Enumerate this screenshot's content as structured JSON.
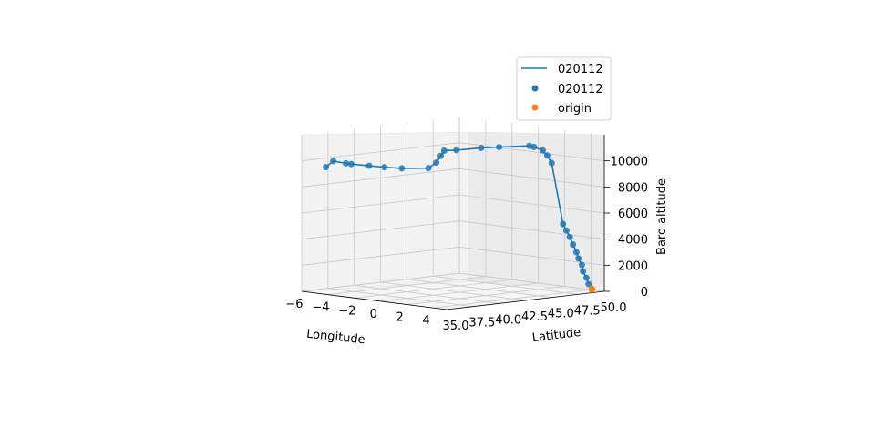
{
  "chart_data": {
    "type": "scatter",
    "projection": "3d",
    "axes": {
      "x": {
        "label": "Longitude",
        "ticks": [
          "−6",
          "−4",
          "−2",
          "0",
          "2",
          "4"
        ],
        "range": [
          -6,
          5
        ]
      },
      "y": {
        "label": "Latitude",
        "ticks": [
          "35.0",
          "37.5",
          "40.0",
          "42.5",
          "45.0",
          "47.5",
          "50.0"
        ],
        "range": [
          35,
          50
        ]
      },
      "z": {
        "label": "Baro altitude",
        "ticks": [
          "0",
          "2000",
          "4000",
          "6000",
          "8000",
          "10000"
        ],
        "range": [
          0,
          12000
        ]
      }
    },
    "grid": true,
    "legend": {
      "placement": "top-right",
      "entries": [
        {
          "label": "020112",
          "kind": "line",
          "color": "#1f77b4"
        },
        {
          "label": "020112",
          "kind": "marker",
          "color": "#1f77b4"
        },
        {
          "label": "origin",
          "kind": "marker",
          "color": "#ff7f0e"
        }
      ]
    },
    "series": [
      {
        "name": "020112",
        "color": "#1f77b4",
        "points": [
          {
            "lon": 4.6,
            "lat": 49.0,
            "alt": 600
          },
          {
            "lon": 4.6,
            "lat": 48.8,
            "alt": 1100
          },
          {
            "lon": 4.5,
            "lat": 48.6,
            "alt": 1600
          },
          {
            "lon": 4.5,
            "lat": 48.5,
            "alt": 2100
          },
          {
            "lon": 4.4,
            "lat": 48.3,
            "alt": 2600
          },
          {
            "lon": 4.4,
            "lat": 48.1,
            "alt": 3100
          },
          {
            "lon": 4.3,
            "lat": 47.9,
            "alt": 3700
          },
          {
            "lon": 4.3,
            "lat": 47.6,
            "alt": 4300
          },
          {
            "lon": 4.2,
            "lat": 47.4,
            "alt": 4800
          },
          {
            "lon": 4.1,
            "lat": 47.2,
            "alt": 5300
          },
          {
            "lon": 3.8,
            "lat": 46.5,
            "alt": 10000
          },
          {
            "lon": 3.7,
            "lat": 46.2,
            "alt": 10600
          },
          {
            "lon": 3.6,
            "lat": 45.9,
            "alt": 11000
          },
          {
            "lon": 3.4,
            "lat": 45.3,
            "alt": 11300
          },
          {
            "lon": 3.3,
            "lat": 45.0,
            "alt": 11400
          },
          {
            "lon": 2.6,
            "lat": 43.0,
            "alt": 11400
          },
          {
            "lon": 2.2,
            "lat": 41.8,
            "alt": 11400
          },
          {
            "lon": 1.6,
            "lat": 40.2,
            "alt": 11300
          },
          {
            "lon": 1.3,
            "lat": 39.4,
            "alt": 11300
          },
          {
            "lon": 1.2,
            "lat": 39.2,
            "alt": 10900
          },
          {
            "lon": 1.1,
            "lat": 38.9,
            "alt": 10400
          },
          {
            "lon": 0.9,
            "lat": 38.4,
            "alt": 10000
          },
          {
            "lon": 0.0,
            "lat": 37.0,
            "alt": 10000
          },
          {
            "lon": -1.0,
            "lat": 36.6,
            "alt": 10000
          },
          {
            "lon": -2.0,
            "lat": 36.4,
            "alt": 10000
          },
          {
            "lon": -3.2,
            "lat": 36.2,
            "alt": 10000
          },
          {
            "lon": -3.6,
            "lat": 36.2,
            "alt": 10000
          },
          {
            "lon": -4.8,
            "lat": 36.5,
            "alt": 10000
          },
          {
            "lon": -5.6,
            "lat": 36.8,
            "alt": 9400
          }
        ]
      }
    ],
    "origin": {
      "name": "origin",
      "color": "#ff7f0e",
      "lon": 4.7,
      "lat": 49.2,
      "alt": 200
    }
  }
}
